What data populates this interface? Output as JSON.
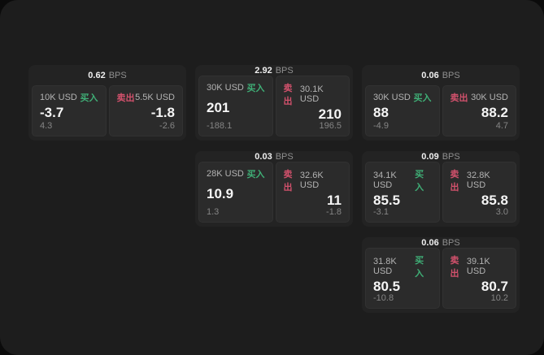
{
  "labels": {
    "buy": "买入",
    "sell": "卖出",
    "bps_unit": "BPS"
  },
  "colors": {
    "buy_green": "#3fae76",
    "sell_red": "#d2516c",
    "window_bg": "#1d1d1d",
    "card_bg": "#232323",
    "panel_bg": "#2b2b2b"
  },
  "cards": [
    {
      "bps": "0.62",
      "buy": {
        "amount": "10K USD",
        "price": "-3.7",
        "change": "4.3"
      },
      "sell": {
        "amount": "5.5K USD",
        "price": "-1.8",
        "change": "-2.6"
      }
    },
    {
      "bps": "2.92",
      "buy": {
        "amount": "30K USD",
        "price": "201",
        "change": "-188.1"
      },
      "sell": {
        "amount": "30.1K USD",
        "price": "210",
        "change": "196.5"
      }
    },
    {
      "bps": "0.06",
      "buy": {
        "amount": "30K USD",
        "price": "88",
        "change": "-4.9"
      },
      "sell": {
        "amount": "30K USD",
        "price": "88.2",
        "change": "4.7"
      }
    },
    {
      "bps": "0.03",
      "buy": {
        "amount": "28K USD",
        "price": "10.9",
        "change": "1.3"
      },
      "sell": {
        "amount": "32.6K USD",
        "price": "11",
        "change": "-1.8"
      }
    },
    {
      "bps": "0.09",
      "buy": {
        "amount": "34.1K USD",
        "price": "85.5",
        "change": "-3.1"
      },
      "sell": {
        "amount": "32.8K USD",
        "price": "85.8",
        "change": "3.0"
      }
    },
    {
      "bps": "0.06",
      "buy": {
        "amount": "31.8K USD",
        "price": "80.5",
        "change": "-10.8"
      },
      "sell": {
        "amount": "39.1K USD",
        "price": "80.7",
        "change": "10.2"
      }
    }
  ]
}
